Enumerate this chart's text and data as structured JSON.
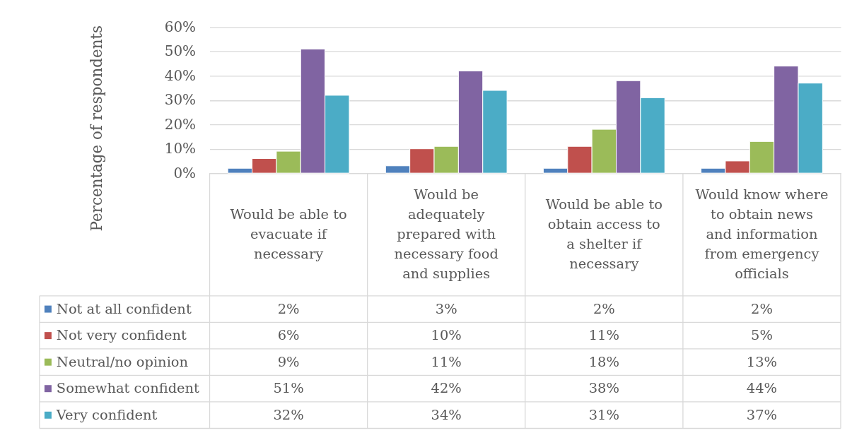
{
  "chart_data": {
    "type": "bar",
    "categories": [
      "Would be able to evacuate if necessary",
      "Would be adequately prepared with necessary food and supplies",
      "Would be able to obtain access to a shelter if necessary",
      "Would know where to obtain news and information from emergency officials"
    ],
    "series": [
      {
        "name": "Not at all confident",
        "color": "#4f81bd",
        "values": [
          2,
          3,
          2,
          2
        ],
        "value_labels": [
          "2%",
          "3%",
          "2%",
          "2%"
        ]
      },
      {
        "name": "Not very confident",
        "color": "#c0504d",
        "values": [
          6,
          10,
          11,
          5
        ],
        "value_labels": [
          "6%",
          "10%",
          "11%",
          "5%"
        ]
      },
      {
        "name": "Neutral/no opinion",
        "color": "#9bbb59",
        "values": [
          9,
          11,
          18,
          13
        ],
        "value_labels": [
          "9%",
          "11%",
          "18%",
          "13%"
        ]
      },
      {
        "name": "Somewhat confident",
        "color": "#8064a2",
        "values": [
          51,
          42,
          38,
          44
        ],
        "value_labels": [
          "51%",
          "42%",
          "38%",
          "44%"
        ]
      },
      {
        "name": "Very confident",
        "color": "#4bacc6",
        "values": [
          32,
          34,
          31,
          37
        ],
        "value_labels": [
          "32%",
          "34%",
          "31%",
          "37%"
        ]
      }
    ],
    "ylabel": "Percentage of respondents",
    "ylim": [
      0,
      60
    ],
    "yticks": [
      {
        "value": 0,
        "label": "0%"
      },
      {
        "value": 10,
        "label": "10%"
      },
      {
        "value": 20,
        "label": "20%"
      },
      {
        "value": 30,
        "label": "30%"
      },
      {
        "value": 40,
        "label": "40%"
      },
      {
        "value": 50,
        "label": "50%"
      },
      {
        "value": 60,
        "label": "60%"
      }
    ],
    "grid": "y",
    "legend": "bottom left"
  }
}
